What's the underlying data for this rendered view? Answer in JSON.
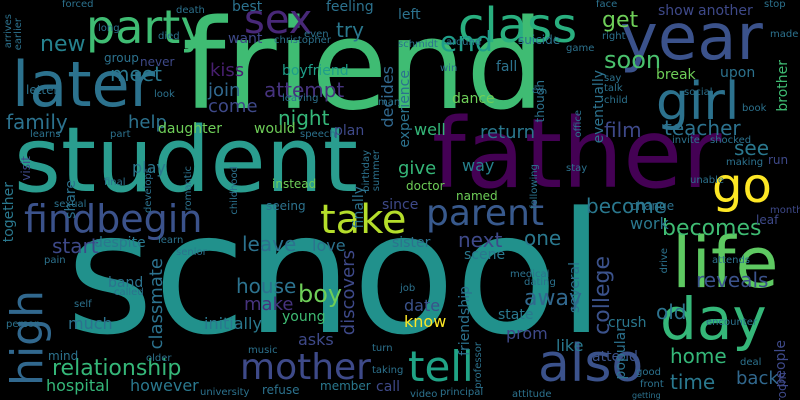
{
  "words": [
    {
      "text": "school",
      "color": "#21918c"
    },
    {
      "text": "friend",
      "color": "#3fbc73"
    },
    {
      "text": "student",
      "color": "#2a9d8f"
    },
    {
      "text": "father",
      "color": "#440154"
    },
    {
      "text": "year",
      "color": "#3b528b"
    },
    {
      "text": "life",
      "color": "#5ec962"
    },
    {
      "text": "later",
      "color": "#2c728e"
    },
    {
      "text": "day",
      "color": "#35b779"
    },
    {
      "text": "party",
      "color": "#3fbc73"
    },
    {
      "text": "class",
      "color": "#29af7f"
    },
    {
      "text": "girl",
      "color": "#2c728e"
    },
    {
      "text": "go",
      "color": "#fde725"
    },
    {
      "text": "high",
      "color": "#31688e"
    },
    {
      "text": "sex",
      "color": "#482878"
    },
    {
      "text": "take",
      "color": "#b5de2b"
    },
    {
      "text": "findbegin",
      "color": "#3b528b"
    },
    {
      "text": "parent",
      "color": "#38598c"
    },
    {
      "text": "mother",
      "color": "#3e4a89"
    },
    {
      "text": "tell",
      "color": "#20a486"
    },
    {
      "text": "also",
      "color": "#3b528b"
    },
    {
      "text": "end",
      "color": "#1f9e89"
    },
    {
      "text": "new",
      "color": "#26828e"
    },
    {
      "text": "meet",
      "color": "#2a788e"
    },
    {
      "text": "family",
      "color": "#2c728e"
    },
    {
      "text": "help",
      "color": "#2c728e"
    },
    {
      "text": "try",
      "color": "#2a788e"
    },
    {
      "text": "attempt",
      "color": "#46337e"
    },
    {
      "text": "kiss",
      "color": "#481f70"
    },
    {
      "text": "join",
      "color": "#31688e"
    },
    {
      "text": "come",
      "color": "#3e4989"
    },
    {
      "text": "night",
      "color": "#35b779"
    },
    {
      "text": "boyfriend",
      "color": "#1f9e89"
    },
    {
      "text": "decides",
      "color": "#31688e"
    },
    {
      "text": "soon",
      "color": "#4ac16d"
    },
    {
      "text": "get",
      "color": "#6ece58"
    },
    {
      "text": "teacher",
      "color": "#2c728e"
    },
    {
      "text": "return",
      "color": "#2a788e"
    },
    {
      "text": "film",
      "color": "#3e4989"
    },
    {
      "text": "see",
      "color": "#2a788e"
    },
    {
      "text": "become",
      "color": "#2a788e"
    },
    {
      "text": "becomes",
      "color": "#3fbc73"
    },
    {
      "text": "work",
      "color": "#2a788e"
    },
    {
      "text": "start",
      "color": "#3e4989"
    },
    {
      "text": "next",
      "color": "#3e4989"
    },
    {
      "text": "one",
      "color": "#2a788e"
    },
    {
      "text": "leave",
      "color": "#2c728e"
    },
    {
      "text": "house",
      "color": "#2c728e"
    },
    {
      "text": "make",
      "color": "#46337e"
    },
    {
      "text": "boy",
      "color": "#6ece58"
    },
    {
      "text": "discovers",
      "color": "#3e4989"
    },
    {
      "text": "college",
      "color": "#3b528b"
    },
    {
      "text": "away",
      "color": "#31688e"
    },
    {
      "text": "reveals",
      "color": "#3b528b"
    },
    {
      "text": "old",
      "color": "#2c728e"
    },
    {
      "text": "relationship",
      "color": "#35b779"
    },
    {
      "text": "home",
      "color": "#35b779"
    },
    {
      "text": "time",
      "color": "#2a788e"
    },
    {
      "text": "back",
      "color": "#31688e"
    },
    {
      "text": "love",
      "color": "#2c728e"
    },
    {
      "text": "give",
      "color": "#35b779"
    },
    {
      "text": "way",
      "color": "#26828e"
    },
    {
      "text": "well",
      "color": "#35b779"
    },
    {
      "text": "daughter",
      "color": "#6ece58"
    },
    {
      "text": "would",
      "color": "#6ece58"
    },
    {
      "text": "play",
      "color": "#2a788e"
    },
    {
      "text": "much",
      "color": "#2c728e"
    },
    {
      "text": "hospital",
      "color": "#35b779"
    },
    {
      "text": "however",
      "color": "#2a788e"
    },
    {
      "text": "classmate",
      "color": "#2c728e"
    },
    {
      "text": "despite",
      "color": "#2a788e"
    },
    {
      "text": "initially",
      "color": "#2a788e"
    },
    {
      "text": "young",
      "color": "#3fbc73"
    },
    {
      "text": "asks",
      "color": "#3e4989"
    },
    {
      "text": "date",
      "color": "#3b528b"
    },
    {
      "text": "know",
      "color": "#fde725"
    },
    {
      "text": "state",
      "color": "#2a788e"
    },
    {
      "text": "prom",
      "color": "#3e4989"
    },
    {
      "text": "like",
      "color": "#2a788e"
    },
    {
      "text": "attend",
      "color": "#3b528b"
    },
    {
      "text": "crush",
      "color": "#2a788e"
    },
    {
      "text": "refuse",
      "color": "#2c728e"
    },
    {
      "text": "call",
      "color": "#3e4989"
    },
    {
      "text": "best",
      "color": "#2c728e"
    },
    {
      "text": "feeling",
      "color": "#2c728e"
    },
    {
      "text": "left",
      "color": "#2c728e"
    },
    {
      "text": "want",
      "color": "#3e4989"
    },
    {
      "text": "plan",
      "color": "#3e4989"
    },
    {
      "text": "dance",
      "color": "#6ece58"
    },
    {
      "text": "fall",
      "color": "#2c728e"
    },
    {
      "text": "show",
      "color": "#3e4989"
    },
    {
      "text": "another",
      "color": "#3e4989"
    },
    {
      "text": "break",
      "color": "#6ece58"
    },
    {
      "text": "upon",
      "color": "#2c728e"
    },
    {
      "text": "brother",
      "color": "#3fbc73"
    },
    {
      "text": "band",
      "color": "#2c728e"
    },
    {
      "text": "sister",
      "color": "#2c728e"
    },
    {
      "text": "scene",
      "color": "#2a788e"
    },
    {
      "text": "together",
      "color": "#2a788e"
    },
    {
      "text": "member",
      "color": "#2a788e"
    },
    {
      "text": "experience",
      "color": "#2c728e"
    },
    {
      "text": "eventually",
      "color": "#2c728e"
    },
    {
      "text": "several",
      "color": "#2c728e"
    },
    {
      "text": "friendship",
      "color": "#2c728e"
    },
    {
      "text": "popular",
      "color": "#2c728e"
    },
    {
      "text": "finally",
      "color": "#2c728e"
    },
    {
      "text": "since",
      "color": "#3e4989"
    },
    {
      "text": "people",
      "color": "#3e4989"
    },
    {
      "text": "room",
      "color": "#3e4989"
    },
    {
      "text": "group",
      "color": "#2c728e"
    },
    {
      "text": "never",
      "color": "#3e4989"
    },
    {
      "text": "letter",
      "color": "#2c728e"
    },
    {
      "text": "seeing",
      "color": "#2c728e"
    },
    {
      "text": "instead",
      "color": "#6ece58"
    },
    {
      "text": "named",
      "color": "#6ece58"
    },
    {
      "text": "doctor",
      "color": "#6ece58"
    },
    {
      "text": "share",
      "color": "#2c728e"
    },
    {
      "text": "visit",
      "color": "#3e4989"
    },
    {
      "text": "run",
      "color": "#3e4989"
    },
    {
      "text": "leaf",
      "color": "#3e4989"
    },
    {
      "text": "month",
      "color": "#3e4989"
    },
    {
      "text": "change",
      "color": "#2c728e"
    },
    {
      "text": "though",
      "color": "#2c728e"
    },
    {
      "text": "death",
      "color": "#2c728e"
    },
    {
      "text": "forced",
      "color": "#2c728e"
    },
    {
      "text": "face",
      "color": "#2c728e"
    },
    {
      "text": "stop",
      "color": "#2c728e"
    },
    {
      "text": "long",
      "color": "#2c728e"
    },
    {
      "text": "died",
      "color": "#2c728e"
    },
    {
      "text": "christopher",
      "color": "#2c728e"
    },
    {
      "text": "schmidt",
      "color": "#2c728e"
    },
    {
      "text": "suicide",
      "color": "#2c728e"
    },
    {
      "text": "made",
      "color": "#2c728e"
    },
    {
      "text": "right",
      "color": "#2c728e"
    },
    {
      "text": "game",
      "color": "#2c728e"
    },
    {
      "text": "around",
      "color": "#2c728e"
    },
    {
      "text": "arrives",
      "color": "#2c728e"
    },
    {
      "text": "earlier",
      "color": "#2c728e"
    },
    {
      "text": "say",
      "color": "#2c728e"
    },
    {
      "text": "talk",
      "color": "#2c728e"
    },
    {
      "text": "child",
      "color": "#2c728e"
    },
    {
      "text": "social",
      "color": "#2c728e"
    },
    {
      "text": "book",
      "color": "#2c728e"
    },
    {
      "text": "leaving",
      "color": "#2c728e"
    },
    {
      "text": "man",
      "color": "#2c728e"
    },
    {
      "text": "ex",
      "color": "#2c728e"
    },
    {
      "text": "win",
      "color": "#2c728e"
    },
    {
      "text": "look",
      "color": "#2c728e"
    },
    {
      "text": "part",
      "color": "#2c728e"
    },
    {
      "text": "learns",
      "color": "#2c728e"
    },
    {
      "text": "speech",
      "color": "#2c728e"
    },
    {
      "text": "shocked",
      "color": "#2c728e"
    },
    {
      "text": "invite",
      "color": "#2c728e"
    },
    {
      "text": "making",
      "color": "#2c728e"
    },
    {
      "text": "unable",
      "color": "#2c728e"
    },
    {
      "text": "stay",
      "color": "#2c728e"
    },
    {
      "text": "office",
      "color": "#2c728e"
    },
    {
      "text": "sexual",
      "color": "#2c728e"
    },
    {
      "text": "develops",
      "color": "#2c728e"
    },
    {
      "text": "final",
      "color": "#2c728e"
    },
    {
      "text": "romantic",
      "color": "#2c728e"
    },
    {
      "text": "childhood",
      "color": "#2c728e"
    },
    {
      "text": "birthday",
      "color": "#2c728e"
    },
    {
      "text": "summer",
      "color": "#2c728e"
    },
    {
      "text": "following",
      "color": "#2c728e"
    },
    {
      "text": "pain",
      "color": "#2c728e"
    },
    {
      "text": "learn",
      "color": "#2c728e"
    },
    {
      "text": "senior",
      "color": "#2c728e"
    },
    {
      "text": "medical",
      "color": "#2c728e"
    },
    {
      "text": "encounter",
      "color": "#2c728e"
    },
    {
      "text": "attends",
      "color": "#2c728e"
    },
    {
      "text": "drive",
      "color": "#2c728e"
    },
    {
      "text": "self",
      "color": "#2c728e"
    },
    {
      "text": "called",
      "color": "#2c728e"
    },
    {
      "text": "dating",
      "color": "#2c728e"
    },
    {
      "text": "job",
      "color": "#2c728e"
    },
    {
      "text": "person",
      "color": "#2c728e"
    },
    {
      "text": "music",
      "color": "#2c728e"
    },
    {
      "text": "older",
      "color": "#2c728e"
    },
    {
      "text": "turn",
      "color": "#2c728e"
    },
    {
      "text": "video",
      "color": "#2c728e"
    },
    {
      "text": "principal",
      "color": "#2c728e"
    },
    {
      "text": "taking",
      "color": "#2c728e"
    },
    {
      "text": "university",
      "color": "#2c728e"
    },
    {
      "text": "professor",
      "color": "#2c728e"
    },
    {
      "text": "attitude",
      "color": "#2c728e"
    },
    {
      "text": "front",
      "color": "#2c728e"
    },
    {
      "text": "deal",
      "color": "#2c728e"
    },
    {
      "text": "good",
      "color": "#2c728e"
    },
    {
      "text": "getting",
      "color": "#2c728e"
    },
    {
      "text": "mind",
      "color": "#2c728e"
    },
    {
      "text": "even",
      "color": "#2c728e"
    }
  ]
}
